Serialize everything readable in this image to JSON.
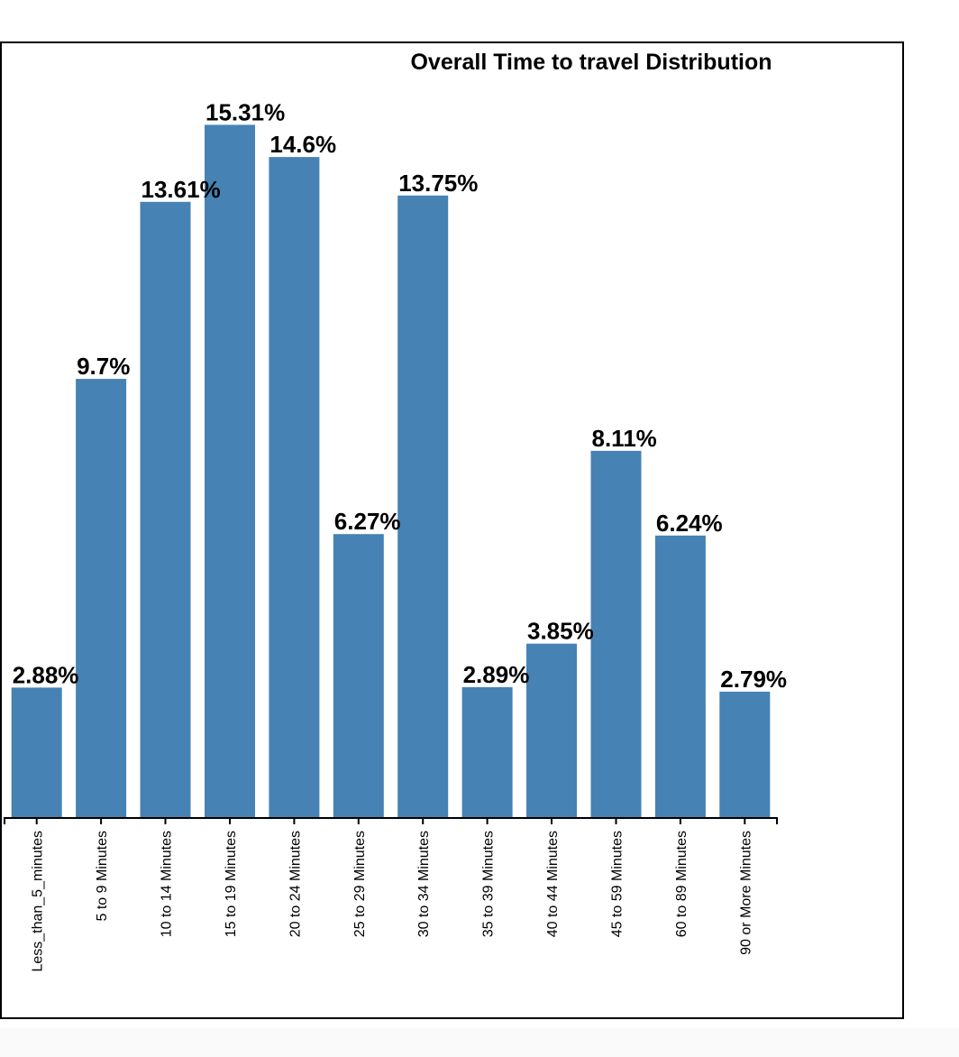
{
  "chart_data": {
    "type": "bar",
    "title": "Overall Time to travel Distribution",
    "xlabel": "",
    "ylabel": "",
    "ylim": [
      0,
      16.5
    ],
    "grid": false,
    "bar_color": "#4682b4",
    "categories": [
      "Less_than_5_minutes",
      "5 to 9 Minutes",
      "10 to 14 Minutes",
      "15 to 19 Minutes",
      "20 to 24 Minutes",
      "25 to 29 Minutes",
      "30 to 34 Minutes",
      "35 to 39 Minutes",
      "40 to 44 Minutes",
      "45 to 59 Minutes",
      "60 to 89 Minutes",
      "90 or More Minutes"
    ],
    "values": [
      2.88,
      9.7,
      13.61,
      15.31,
      14.6,
      6.27,
      13.75,
      2.89,
      3.85,
      8.11,
      6.24,
      2.79
    ],
    "data_labels": [
      "2.88%",
      "9.7%",
      "13.61%",
      "15.31%",
      "14.6%",
      "6.27%",
      "13.75%",
      "2.89%",
      "3.85%",
      "8.11%",
      "6.24%",
      "2.79%"
    ]
  }
}
